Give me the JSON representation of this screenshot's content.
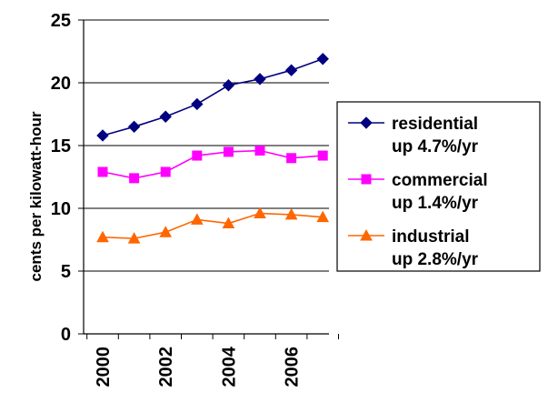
{
  "chart_data": {
    "type": "line",
    "title": "",
    "xlabel": "",
    "ylabel": "cents per kilowatt-hour",
    "ylim": [
      0,
      25
    ],
    "yticks": [
      0,
      5,
      10,
      15,
      20,
      25
    ],
    "xticks": [
      "2000",
      "2002",
      "2004",
      "2006"
    ],
    "x": [
      2000,
      2001,
      2002,
      2003,
      2004,
      2005,
      2006,
      2007
    ],
    "grid": true,
    "legend_position": "right",
    "series": [
      {
        "name": "residential",
        "label_line1": "residential",
        "label_line2": "up 4.7%/yr",
        "color": "#000080",
        "marker": "diamond",
        "values": [
          15.8,
          16.5,
          17.3,
          18.3,
          19.8,
          20.3,
          21.0,
          21.9
        ]
      },
      {
        "name": "commercial",
        "label_line1": "commercial",
        "label_line2": "up 1.4%/yr",
        "color": "#ff00ff",
        "marker": "square",
        "values": [
          12.9,
          12.4,
          12.9,
          14.2,
          14.5,
          14.6,
          14.0,
          14.2
        ]
      },
      {
        "name": "industrial",
        "label_line1": "industrial",
        "label_line2": "up 2.8%/yr",
        "color": "#ff6600",
        "marker": "triangle",
        "values": [
          7.7,
          7.6,
          8.1,
          9.1,
          8.8,
          9.6,
          9.5,
          9.3
        ]
      }
    ]
  }
}
